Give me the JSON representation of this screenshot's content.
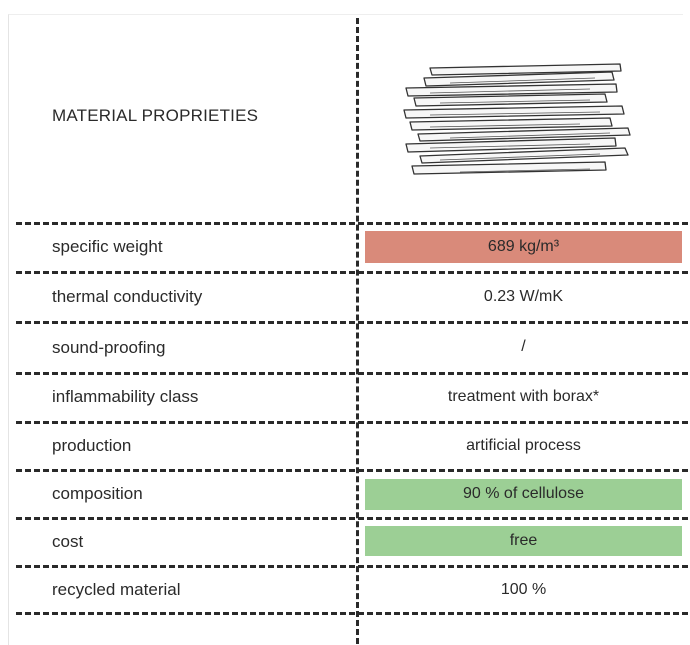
{
  "header": {
    "title": "MATERIAL PROPRIETIES"
  },
  "colors": {
    "highlight_red": "#d98a7a",
    "highlight_green": "#9ccf95",
    "dash": "#2a2a2a"
  },
  "icon": {
    "name": "stacked-panels-icon"
  },
  "rows": [
    {
      "label": "specific weight",
      "value": "689 kg/m³",
      "highlight": "red"
    },
    {
      "label": "thermal conductivity",
      "value": "0.23 W/mK",
      "highlight": "none"
    },
    {
      "label": "sound-proofing",
      "value": "/",
      "highlight": "none"
    },
    {
      "label": "inflammability class",
      "value": "treatment with borax*",
      "highlight": "none"
    },
    {
      "label": "production",
      "value": "artificial process",
      "highlight": "none"
    },
    {
      "label": "composition",
      "value": "90 % of cellulose",
      "highlight": "green"
    },
    {
      "label": "cost",
      "value": "free",
      "highlight": "green"
    },
    {
      "label": "recycled material",
      "value": "100 %",
      "highlight": "none"
    }
  ]
}
